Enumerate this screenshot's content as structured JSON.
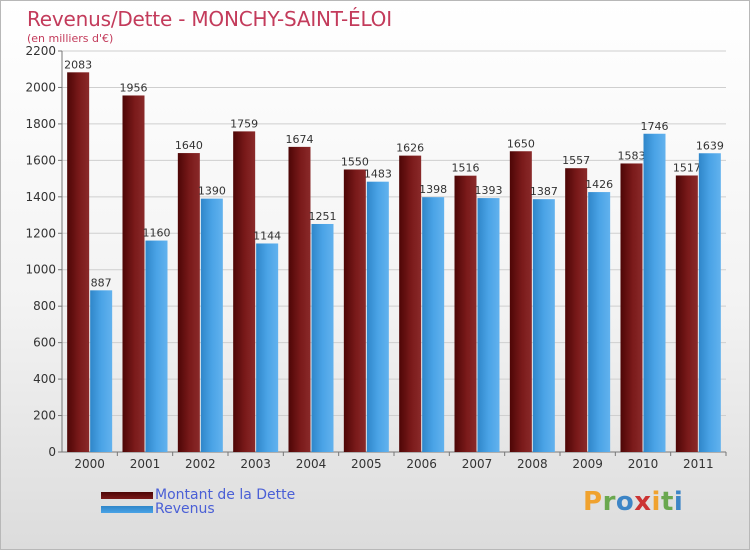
{
  "title": "Revenus/Dette - MONCHY-SAINT-ÉLOI",
  "subtitle": "(en milliers d'€)",
  "brand": {
    "letters": [
      "P",
      "r",
      "o",
      "x",
      "i",
      "t",
      "i"
    ],
    "colors": [
      "#f0a22e",
      "#6aa84f",
      "#3d85c6",
      "#cc3333",
      "#f0a22e",
      "#6aa84f",
      "#3d85c6"
    ]
  },
  "colors": {
    "dette": "#7a1a1a",
    "revenus": "#4aa3e6",
    "axis_text": "#333333",
    "title": "#c33b5b",
    "legend_text": "#4a5fd6"
  },
  "chart_data": {
    "type": "bar",
    "title": "Revenus/Dette - MONCHY-SAINT-ÉLOI",
    "subtitle": "(en milliers d'€)",
    "xlabel": "",
    "ylabel": "",
    "categories": [
      "2000",
      "2001",
      "2002",
      "2003",
      "2004",
      "2005",
      "2006",
      "2007",
      "2008",
      "2009",
      "2010",
      "2011"
    ],
    "series": [
      {
        "name": "Montant de la Dette",
        "values": [
          2083,
          1956,
          1640,
          1759,
          1674,
          1550,
          1626,
          1516,
          1650,
          1557,
          1583,
          1517
        ]
      },
      {
        "name": "Revenus",
        "values": [
          887,
          1160,
          1390,
          1144,
          1251,
          1483,
          1398,
          1393,
          1387,
          1426,
          1746,
          1639
        ]
      }
    ],
    "ylim": [
      0,
      2200
    ],
    "yticks": [
      0,
      200,
      400,
      600,
      800,
      1000,
      1200,
      1400,
      1600,
      1800,
      2000,
      2200
    ],
    "grid": true,
    "legend_position": "bottom-left"
  }
}
